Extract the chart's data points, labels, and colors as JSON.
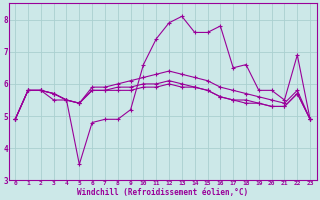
{
  "xlabel": "Windchill (Refroidissement éolien,°C)",
  "background_color": "#cce8e8",
  "grid_color": "#aad0d0",
  "line_color": "#990099",
  "xlim": [
    -0.5,
    23.5
  ],
  "ylim": [
    3.0,
    8.5
  ],
  "xticks": [
    0,
    1,
    2,
    3,
    4,
    5,
    6,
    7,
    8,
    9,
    10,
    11,
    12,
    13,
    14,
    15,
    16,
    17,
    18,
    19,
    20,
    21,
    22,
    23
  ],
  "yticks": [
    3,
    4,
    5,
    6,
    7,
    8
  ],
  "line1_y": [
    4.9,
    5.8,
    5.8,
    5.5,
    5.5,
    3.5,
    4.8,
    4.9,
    4.9,
    5.2,
    6.6,
    7.4,
    7.9,
    8.1,
    7.6,
    7.6,
    7.8,
    6.5,
    6.6,
    5.8,
    5.8,
    5.5,
    6.9,
    4.9
  ],
  "line2_y": [
    4.9,
    5.8,
    5.8,
    5.7,
    5.5,
    5.4,
    5.8,
    5.8,
    5.8,
    5.8,
    5.9,
    5.9,
    6.0,
    5.9,
    5.9,
    5.8,
    5.6,
    5.5,
    5.4,
    5.4,
    5.3,
    5.3,
    5.7,
    4.9
  ],
  "line3_y": [
    4.9,
    5.8,
    5.8,
    5.7,
    5.5,
    5.4,
    5.8,
    5.8,
    5.9,
    5.9,
    6.0,
    6.0,
    6.1,
    6.0,
    5.9,
    5.8,
    5.6,
    5.5,
    5.5,
    5.4,
    5.3,
    5.3,
    5.7,
    4.9
  ],
  "line4_y": [
    4.9,
    5.8,
    5.8,
    5.7,
    5.5,
    5.4,
    5.9,
    5.9,
    6.0,
    6.1,
    6.2,
    6.3,
    6.4,
    6.3,
    6.2,
    6.1,
    5.9,
    5.8,
    5.7,
    5.6,
    5.5,
    5.4,
    5.8,
    4.9
  ]
}
